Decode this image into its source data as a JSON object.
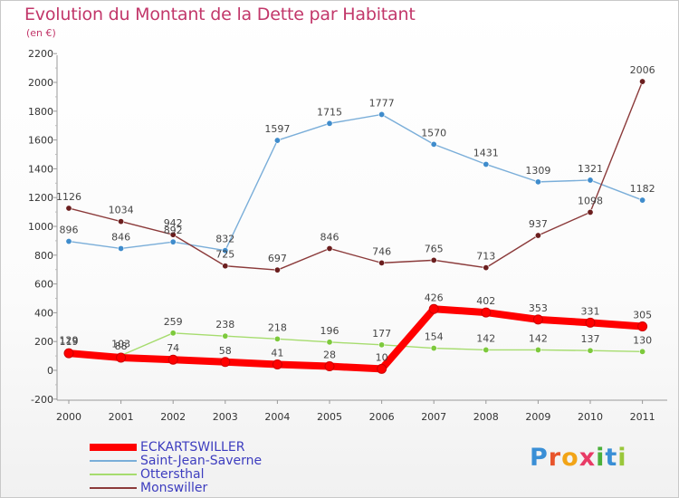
{
  "title": "Evolution du Montant de la Dette par Habitant",
  "subtitle": "(en €)",
  "logo": {
    "letters": [
      "P",
      "r",
      "o",
      "x",
      "i",
      "t",
      "i"
    ],
    "colors": [
      "#3a8fd6",
      "#e8542b",
      "#f2a417",
      "#e83b66",
      "#4bb03a",
      "#3a8fd6",
      "#9ac73a"
    ]
  },
  "chart_data": {
    "type": "line",
    "x": [
      "2000",
      "2001",
      "2002",
      "2003",
      "2004",
      "2005",
      "2006",
      "2007",
      "2008",
      "2009",
      "2010",
      "2011"
    ],
    "ylim": [
      -200,
      2200
    ],
    "yticks": [
      "-200",
      "0",
      "200",
      "400",
      "600",
      "800",
      "1000",
      "1200",
      "1400",
      "1600",
      "1800",
      "2000",
      "2200"
    ],
    "grid": false,
    "legend_position": "bottom-left",
    "series": [
      {
        "name": "ECKARTSWILLER",
        "color": "#ff0000",
        "marker_color": "#ff0000",
        "values": [
          119,
          88,
          74,
          58,
          41,
          28,
          10,
          426,
          402,
          353,
          331,
          305
        ],
        "labels": [
          "119",
          "88",
          "74",
          "58",
          "41",
          "28",
          "10",
          "426",
          "402",
          "353",
          "331",
          "305"
        ]
      },
      {
        "name": "Saint-Jean-Saverne",
        "color": "#7aaed9",
        "marker_color": "#3f8ccc",
        "values": [
          896,
          846,
          892,
          832,
          1597,
          1715,
          1777,
          1570,
          1431,
          1309,
          1321,
          1182
        ],
        "labels": [
          "896",
          "846",
          "892",
          "832",
          "1597",
          "1715",
          "1777",
          "1570",
          "1431",
          "1309",
          "1321",
          "1182"
        ]
      },
      {
        "name": "Ottersthal",
        "color": "#a6dc6e",
        "marker_color": "#7dc93c",
        "values": [
          129,
          103,
          259,
          238,
          218,
          196,
          177,
          154,
          142,
          142,
          137,
          130
        ],
        "labels": [
          "129",
          "103",
          "259",
          "238",
          "218",
          "196",
          "177",
          "154",
          "142",
          "142",
          "137",
          "130"
        ]
      },
      {
        "name": "Monswiller",
        "color": "#8b3a3a",
        "marker_color": "#6b1e1e",
        "values": [
          1126,
          1034,
          942,
          725,
          697,
          846,
          746,
          765,
          713,
          937,
          1098,
          2006
        ],
        "labels": [
          "1126",
          "1034",
          "942",
          "725",
          "697",
          "846",
          "746",
          "765",
          "713",
          "937",
          "1098",
          "2006"
        ]
      }
    ]
  }
}
